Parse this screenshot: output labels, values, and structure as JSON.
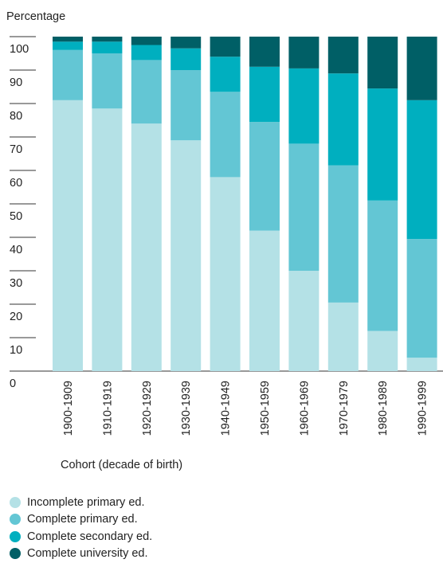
{
  "chart_data": {
    "type": "bar",
    "stacked": true,
    "ylabel": "Percentage",
    "xlabel": "Cohort (decade of birth)",
    "ylim": [
      0,
      100
    ],
    "yticks": [
      0,
      10,
      20,
      30,
      40,
      50,
      60,
      70,
      80,
      90,
      100
    ],
    "categories": [
      "1900-1909",
      "1910-1919",
      "1920-1929",
      "1930-1939",
      "1940-1949",
      "1950-1959",
      "1960-1969",
      "1970-1979",
      "1980-1989",
      "1990-1999"
    ],
    "series": [
      {
        "name": "Incomplete primary ed.",
        "color": "#b4e1e6",
        "values": [
          81,
          78.5,
          74,
          69,
          58,
          42,
          30,
          20.5,
          12,
          4
        ]
      },
      {
        "name": "Complete primary ed.",
        "color": "#63c6d4",
        "values": [
          15,
          16.5,
          19,
          21,
          25.5,
          32.5,
          38,
          41,
          39,
          35.5
        ]
      },
      {
        "name": "Complete secondary ed.",
        "color": "#00afbf",
        "values": [
          2.5,
          3.5,
          4.5,
          6.5,
          10.5,
          16.5,
          22.5,
          27.5,
          33.5,
          41.5
        ]
      },
      {
        "name": "Complete university ed.",
        "color": "#005f66",
        "values": [
          1.5,
          1.5,
          2.5,
          3.5,
          6,
          9,
          9.5,
          11,
          15.5,
          19
        ]
      }
    ]
  }
}
